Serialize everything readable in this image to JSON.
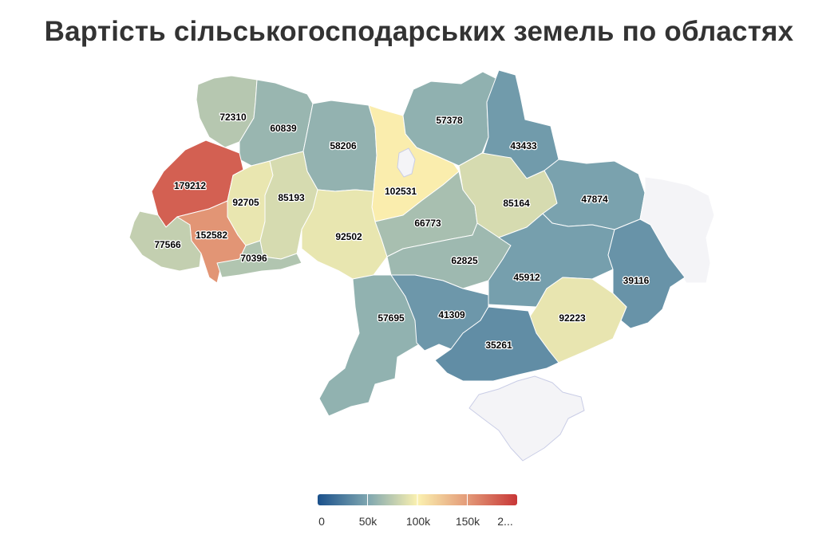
{
  "title": "Вартість сільськогосподарських земель по областях",
  "color_scale": {
    "min": 0,
    "max": 200000,
    "stops": [
      "#1a508b",
      "#7ea6b0",
      "#fbf1b0",
      "#e39a78",
      "#c83737"
    ],
    "no_data_color": "#f4f4f7"
  },
  "legend": {
    "ticks": [
      "0",
      "50k",
      "100k",
      "150k",
      "2..."
    ]
  },
  "regions": [
    {
      "id": "volyn",
      "value": 72310
    },
    {
      "id": "rivne",
      "value": 60839
    },
    {
      "id": "zhytomyr",
      "value": 58206
    },
    {
      "id": "kyiv",
      "value": 102531
    },
    {
      "id": "chernihiv",
      "value": 57378
    },
    {
      "id": "sumy",
      "value": 43433
    },
    {
      "id": "lviv",
      "value": 179212
    },
    {
      "id": "ternopil",
      "value": 92705
    },
    {
      "id": "khmelnytskyi",
      "value": 85193
    },
    {
      "id": "poltava",
      "value": 85164
    },
    {
      "id": "kharkiv",
      "value": 47874
    },
    {
      "id": "cherkasy",
      "value": 66773
    },
    {
      "id": "zakarpattia",
      "value": 77566
    },
    {
      "id": "ivano-frankivsk",
      "value": 152582
    },
    {
      "id": "vinnytsia",
      "value": 92502
    },
    {
      "id": "chernivtsi",
      "value": 70396
    },
    {
      "id": "kirovohrad",
      "value": 62825
    },
    {
      "id": "dnipropetrovsk",
      "value": 45912
    },
    {
      "id": "donetsk",
      "value": 39116
    },
    {
      "id": "mykolaiv",
      "value": 41309
    },
    {
      "id": "odesa",
      "value": 57695
    },
    {
      "id": "zaporizhzhia",
      "value": 92223
    },
    {
      "id": "kherson",
      "value": 35261
    },
    {
      "id": "luhansk",
      "value": null
    },
    {
      "id": "crimea",
      "value": null
    },
    {
      "id": "kyiv-city",
      "value": null
    }
  ]
}
